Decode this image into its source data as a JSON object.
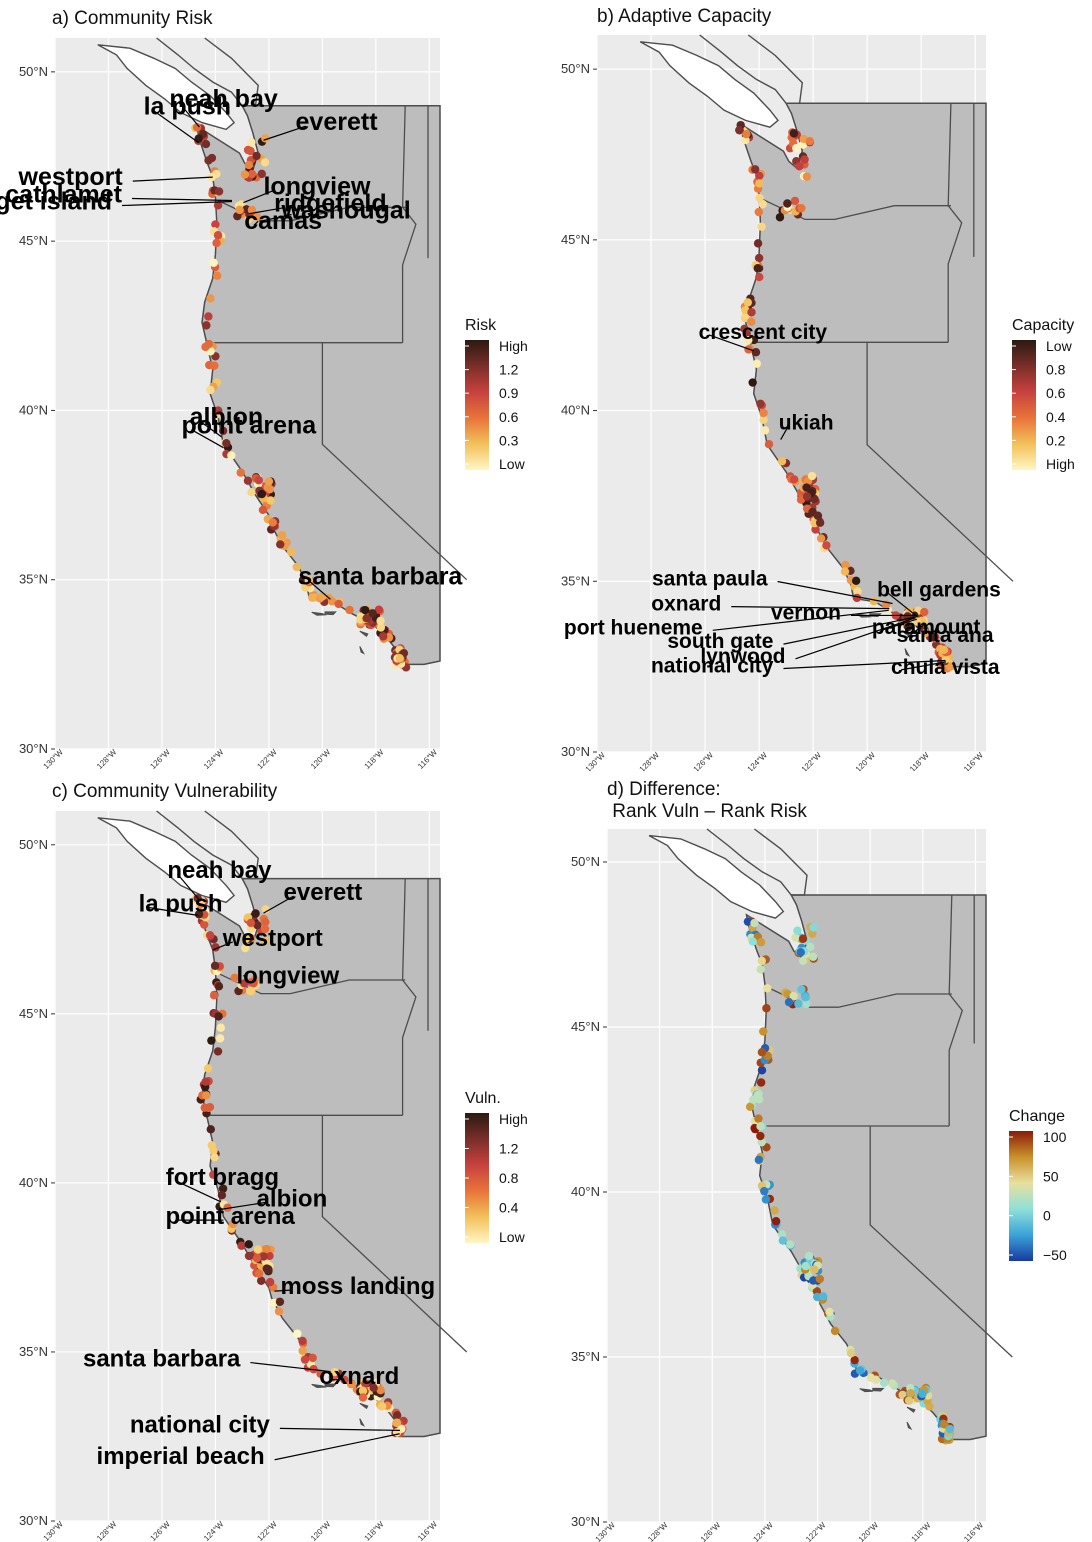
{
  "figure": {
    "panels": [
      {
        "id": "a",
        "title": "a) Community Risk",
        "legend": {
          "title": "Risk",
          "labels": [
            "High",
            "1.2",
            "0.9",
            "0.6",
            "0.3",
            "Low"
          ],
          "colors": [
            "#2b1a10",
            "#7a2e2a",
            "#c8413e",
            "#e8743a",
            "#f2c15a",
            "#fff6c4"
          ]
        },
        "labels": [
          {
            "text": "neah bay",
            "lon": -124.6,
            "lat": 48.37
          },
          {
            "text": "la push",
            "lon": -124.63,
            "lat": 47.91
          },
          {
            "text": "everett",
            "lon": -122.2,
            "lat": 47.98
          },
          {
            "text": "westport",
            "lon": -124.1,
            "lat": 46.89
          },
          {
            "text": "longview",
            "lon": -122.95,
            "lat": 46.14
          },
          {
            "text": "cathlamet",
            "lon": -123.38,
            "lat": 46.2
          },
          {
            "text": "ridgefield",
            "lon": -122.74,
            "lat": 45.81
          },
          {
            "text": "puget island",
            "lon": -123.38,
            "lat": 46.17
          },
          {
            "text": "washougal",
            "lon": -122.35,
            "lat": 45.58
          },
          {
            "text": "camas",
            "lon": -122.4,
            "lat": 45.59
          },
          {
            "text": "albion",
            "lon": -123.77,
            "lat": 39.22
          },
          {
            "text": "point arena",
            "lon": -123.7,
            "lat": 38.9
          },
          {
            "text": "santa barbara",
            "lon": -119.7,
            "lat": 34.42
          }
        ]
      },
      {
        "id": "b",
        "title": "b) Adaptive Capacity",
        "legend": {
          "title": "Capacity",
          "labels": [
            "Low",
            "0.8",
            "0.6",
            "0.4",
            "0.2",
            "High"
          ],
          "colors": [
            "#2b1a10",
            "#7a2e2a",
            "#c8413e",
            "#e8743a",
            "#f2c15a",
            "#fff6c4"
          ]
        },
        "labels": [
          {
            "text": "crescent city",
            "lon": -124.2,
            "lat": 41.75
          },
          {
            "text": "ukiah",
            "lon": -123.2,
            "lat": 39.15
          },
          {
            "text": "santa paula",
            "lon": -119.06,
            "lat": 34.35
          },
          {
            "text": "bell gardens",
            "lon": -118.15,
            "lat": 33.97
          },
          {
            "text": "oxnard",
            "lon": -119.18,
            "lat": 34.2
          },
          {
            "text": "vernon",
            "lon": -118.23,
            "lat": 34.0
          },
          {
            "text": "paramount",
            "lon": -118.16,
            "lat": 33.89
          },
          {
            "text": "port hueneme",
            "lon": -119.2,
            "lat": 34.15
          },
          {
            "text": "south gate",
            "lon": -118.21,
            "lat": 33.95
          },
          {
            "text": "santa ana",
            "lon": -117.87,
            "lat": 33.75
          },
          {
            "text": "lynwood",
            "lon": -118.21,
            "lat": 33.93
          },
          {
            "text": "national city",
            "lon": -117.1,
            "lat": 32.68
          },
          {
            "text": "chula vista",
            "lon": -117.08,
            "lat": 32.64
          }
        ]
      },
      {
        "id": "c",
        "title": "c) Community Vulnerability",
        "legend": {
          "title": "Vuln.",
          "labels": [
            "High",
            "1.2",
            "0.8",
            "0.4",
            "Low"
          ],
          "colors": [
            "#2b1a10",
            "#7a2e2a",
            "#c8413e",
            "#e8743a",
            "#f2c15a",
            "#fff6c4"
          ]
        },
        "labels": [
          {
            "text": "neah bay",
            "lon": -124.6,
            "lat": 48.37
          },
          {
            "text": "everett",
            "lon": -122.2,
            "lat": 47.98
          },
          {
            "text": "la push",
            "lon": -124.63,
            "lat": 47.91
          },
          {
            "text": "westport",
            "lon": -124.1,
            "lat": 46.89
          },
          {
            "text": "longview",
            "lon": -122.95,
            "lat": 46.14
          },
          {
            "text": "fort bragg",
            "lon": -123.8,
            "lat": 39.44
          },
          {
            "text": "albion",
            "lon": -123.77,
            "lat": 39.22
          },
          {
            "text": "point arena",
            "lon": -123.7,
            "lat": 38.9
          },
          {
            "text": "moss landing",
            "lon": -121.79,
            "lat": 36.8
          },
          {
            "text": "santa barbara",
            "lon": -119.7,
            "lat": 34.42
          },
          {
            "text": "oxnard",
            "lon": -119.18,
            "lat": 34.2
          },
          {
            "text": "national city",
            "lon": -117.1,
            "lat": 32.68
          },
          {
            "text": "imperial beach",
            "lon": -117.11,
            "lat": 32.58
          }
        ]
      },
      {
        "id": "d",
        "title": "d) Difference:\n Rank Vuln – Rank Risk",
        "legend": {
          "title": "Change",
          "labels": [
            "100",
            "50",
            "0",
            "−50"
          ],
          "colors": [
            "#8b1a0a",
            "#c8922a",
            "#e8e0a0",
            "#8fe0d8",
            "#3aa3d8",
            "#1a3aa0"
          ]
        },
        "labels": []
      }
    ],
    "axes": {
      "lat_ticks": [
        "50°N",
        "45°N",
        "40°N",
        "35°N",
        "30°N"
      ],
      "lon_ticks": [
        "130°W",
        "128°W",
        "126°W",
        "124°W",
        "122°W",
        "120°W",
        "118°W",
        "116°W"
      ]
    },
    "colors": {
      "panel_bg": "#ebebeb",
      "land": "#bdbdbd",
      "border": "#4d4d4d",
      "grid": "#ffffff"
    }
  }
}
